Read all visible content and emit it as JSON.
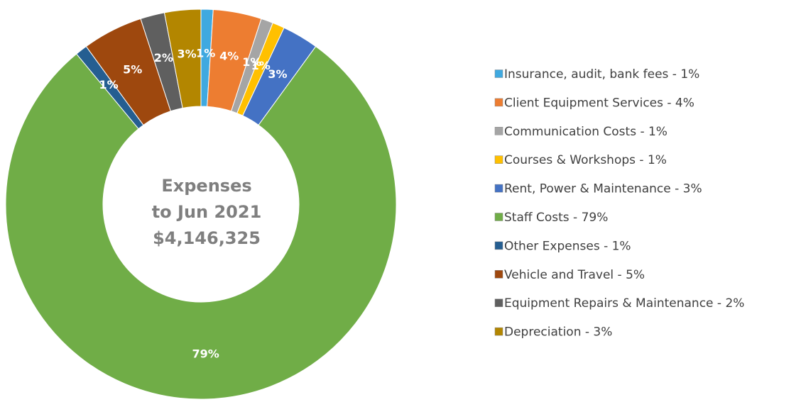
{
  "chart_data": {
    "type": "donut",
    "center_text": [
      "Expenses",
      "to Jun 2021",
      "$4,146,325"
    ],
    "categories": [
      "Insurance, audit, bank fees - 1%",
      "Client Equipment Services - 4%",
      "Communication Costs - 1%",
      "Courses & Workshops - 1%",
      "Rent, Power & Maintenance - 3%",
      "Staff Costs - 79%",
      "Other Expenses - 1%",
      "Vehicle and Travel - 5%",
      "Equipment Repairs & Maintenance - 2%",
      "Depreciation - 3%"
    ],
    "values": [
      1,
      4,
      1,
      1,
      3,
      79,
      1,
      5,
      2,
      3
    ],
    "value_labels": [
      "1%",
      "4%",
      "1%",
      "1%",
      "3%",
      "79%",
      "1%",
      "5%",
      "2%",
      "3%"
    ],
    "colors": [
      "#3fa9e0",
      "#ed7d31",
      "#a5a5a5",
      "#ffc000",
      "#4472c4",
      "#70ad47",
      "#255e91",
      "#9e480e",
      "#5f5f5f",
      "#b38600"
    ],
    "legend": "right"
  }
}
